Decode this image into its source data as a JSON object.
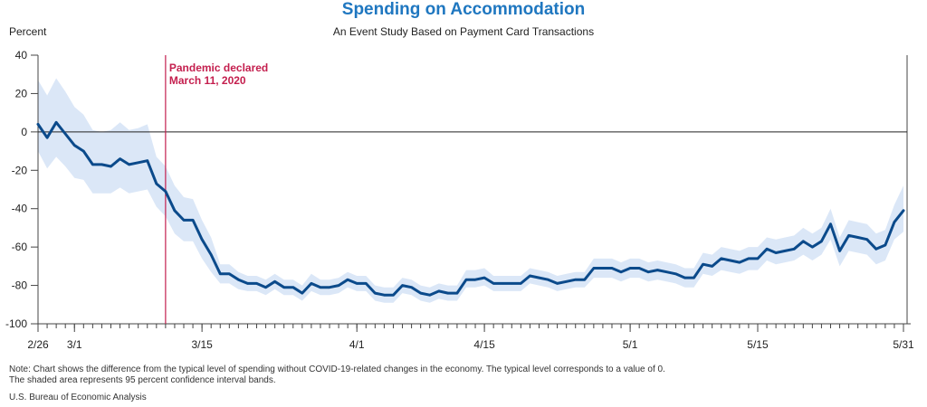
{
  "chart_data": {
    "type": "line",
    "title": "Spending on Accommodation",
    "subtitle": "An Event Study Based on Payment Card Transactions",
    "ylabel": "Percent",
    "ylim": [
      -100,
      40
    ],
    "yticks": [
      40,
      20,
      0,
      -20,
      -40,
      -60,
      -80,
      -100
    ],
    "x_start": "2020-02-26",
    "x_end": "2020-05-31",
    "xtick_labels": [
      {
        "date": "2020-02-26",
        "label": "2/26"
      },
      {
        "date": "2020-03-01",
        "label": "3/1"
      },
      {
        "date": "2020-03-15",
        "label": "3/15"
      },
      {
        "date": "2020-04-01",
        "label": "4/1"
      },
      {
        "date": "2020-04-15",
        "label": "4/15"
      },
      {
        "date": "2020-05-01",
        "label": "5/1"
      },
      {
        "date": "2020-05-15",
        "label": "5/15"
      },
      {
        "date": "2020-05-31",
        "label": "5/31"
      }
    ],
    "colors": {
      "line": "#0b4a8b",
      "band": "#dbe7f7",
      "event": "#c41f4e",
      "title": "#1f77c0",
      "zero": "#222222"
    },
    "series": [
      {
        "name": "",
        "values": [
          {
            "x": "2020-02-26",
            "y": 4,
            "lo": -10,
            "hi": 27
          },
          {
            "x": "2020-02-27",
            "y": -3,
            "lo": -19,
            "hi": 19
          },
          {
            "x": "2020-02-28",
            "y": 5,
            "lo": -13,
            "hi": 28
          },
          {
            "x": "2020-02-29",
            "y": -1,
            "lo": -18,
            "hi": 21
          },
          {
            "x": "2020-03-01",
            "y": -7,
            "lo": -24,
            "hi": 13
          },
          {
            "x": "2020-03-02",
            "y": -10,
            "lo": -25,
            "hi": 9
          },
          {
            "x": "2020-03-03",
            "y": -17,
            "lo": -32,
            "hi": 1
          },
          {
            "x": "2020-03-04",
            "y": -17,
            "lo": -32,
            "hi": 0
          },
          {
            "x": "2020-03-05",
            "y": -18,
            "lo": -32,
            "hi": 1
          },
          {
            "x": "2020-03-06",
            "y": -14,
            "lo": -29,
            "hi": 5
          },
          {
            "x": "2020-03-07",
            "y": -17,
            "lo": -32,
            "hi": 1
          },
          {
            "x": "2020-03-08",
            "y": -16,
            "lo": -31,
            "hi": 2
          },
          {
            "x": "2020-03-09",
            "y": -15,
            "lo": -30,
            "hi": 4
          },
          {
            "x": "2020-03-10",
            "y": -27,
            "lo": -39,
            "hi": -13
          },
          {
            "x": "2020-03-11",
            "y": -31,
            "lo": -44,
            "hi": -18
          },
          {
            "x": "2020-03-12",
            "y": -41,
            "lo": -53,
            "hi": -28
          },
          {
            "x": "2020-03-13",
            "y": -46,
            "lo": -57,
            "hi": -34
          },
          {
            "x": "2020-03-14",
            "y": -46,
            "lo": -57,
            "hi": -35
          },
          {
            "x": "2020-03-15",
            "y": -56,
            "lo": -66,
            "hi": -46
          },
          {
            "x": "2020-03-16",
            "y": -64,
            "lo": -73,
            "hi": -55
          },
          {
            "x": "2020-03-17",
            "y": -74,
            "lo": -79,
            "hi": -69
          },
          {
            "x": "2020-03-18",
            "y": -74,
            "lo": -79,
            "hi": -69
          },
          {
            "x": "2020-03-19",
            "y": -77,
            "lo": -82,
            "hi": -73
          },
          {
            "x": "2020-03-20",
            "y": -79,
            "lo": -83,
            "hi": -75
          },
          {
            "x": "2020-03-21",
            "y": -79,
            "lo": -83,
            "hi": -75
          },
          {
            "x": "2020-03-22",
            "y": -81,
            "lo": -85,
            "hi": -77
          },
          {
            "x": "2020-03-23",
            "y": -78,
            "lo": -82,
            "hi": -74
          },
          {
            "x": "2020-03-24",
            "y": -81,
            "lo": -85,
            "hi": -77
          },
          {
            "x": "2020-03-25",
            "y": -81,
            "lo": -85,
            "hi": -77
          },
          {
            "x": "2020-03-26",
            "y": -84,
            "lo": -88,
            "hi": -80
          },
          {
            "x": "2020-03-27",
            "y": -79,
            "lo": -83,
            "hi": -74
          },
          {
            "x": "2020-03-28",
            "y": -81,
            "lo": -85,
            "hi": -77
          },
          {
            "x": "2020-03-29",
            "y": -81,
            "lo": -85,
            "hi": -77
          },
          {
            "x": "2020-03-30",
            "y": -80,
            "lo": -84,
            "hi": -76
          },
          {
            "x": "2020-03-31",
            "y": -77,
            "lo": -81,
            "hi": -73
          },
          {
            "x": "2020-04-01",
            "y": -79,
            "lo": -83,
            "hi": -75
          },
          {
            "x": "2020-04-02",
            "y": -79,
            "lo": -83,
            "hi": -75
          },
          {
            "x": "2020-04-03",
            "y": -84,
            "lo": -88,
            "hi": -80
          },
          {
            "x": "2020-04-04",
            "y": -85,
            "lo": -89,
            "hi": -81
          },
          {
            "x": "2020-04-05",
            "y": -85,
            "lo": -89,
            "hi": -81
          },
          {
            "x": "2020-04-06",
            "y": -80,
            "lo": -84,
            "hi": -76
          },
          {
            "x": "2020-04-07",
            "y": -81,
            "lo": -85,
            "hi": -77
          },
          {
            "x": "2020-04-08",
            "y": -84,
            "lo": -88,
            "hi": -80
          },
          {
            "x": "2020-04-09",
            "y": -85,
            "lo": -89,
            "hi": -81
          },
          {
            "x": "2020-04-10",
            "y": -83,
            "lo": -87,
            "hi": -79
          },
          {
            "x": "2020-04-11",
            "y": -84,
            "lo": -88,
            "hi": -80
          },
          {
            "x": "2020-04-12",
            "y": -84,
            "lo": -88,
            "hi": -80
          },
          {
            "x": "2020-04-13",
            "y": -77,
            "lo": -81,
            "hi": -72
          },
          {
            "x": "2020-04-14",
            "y": -77,
            "lo": -81,
            "hi": -72
          },
          {
            "x": "2020-04-15",
            "y": -76,
            "lo": -80,
            "hi": -71
          },
          {
            "x": "2020-04-16",
            "y": -79,
            "lo": -83,
            "hi": -75
          },
          {
            "x": "2020-04-17",
            "y": -79,
            "lo": -83,
            "hi": -75
          },
          {
            "x": "2020-04-18",
            "y": -79,
            "lo": -83,
            "hi": -75
          },
          {
            "x": "2020-04-19",
            "y": -79,
            "lo": -83,
            "hi": -75
          },
          {
            "x": "2020-04-20",
            "y": -75,
            "lo": -79,
            "hi": -71
          },
          {
            "x": "2020-04-21",
            "y": -76,
            "lo": -80,
            "hi": -72
          },
          {
            "x": "2020-04-22",
            "y": -77,
            "lo": -81,
            "hi": -73
          },
          {
            "x": "2020-04-23",
            "y": -79,
            "lo": -83,
            "hi": -75
          },
          {
            "x": "2020-04-24",
            "y": -78,
            "lo": -82,
            "hi": -74
          },
          {
            "x": "2020-04-25",
            "y": -77,
            "lo": -81,
            "hi": -73
          },
          {
            "x": "2020-04-26",
            "y": -77,
            "lo": -81,
            "hi": -73
          },
          {
            "x": "2020-04-27",
            "y": -71,
            "lo": -76,
            "hi": -66
          },
          {
            "x": "2020-04-28",
            "y": -71,
            "lo": -76,
            "hi": -66
          },
          {
            "x": "2020-04-29",
            "y": -71,
            "lo": -76,
            "hi": -66
          },
          {
            "x": "2020-04-30",
            "y": -73,
            "lo": -78,
            "hi": -68
          },
          {
            "x": "2020-05-01",
            "y": -71,
            "lo": -76,
            "hi": -66
          },
          {
            "x": "2020-05-02",
            "y": -71,
            "lo": -76,
            "hi": -66
          },
          {
            "x": "2020-05-03",
            "y": -73,
            "lo": -78,
            "hi": -68
          },
          {
            "x": "2020-05-04",
            "y": -72,
            "lo": -77,
            "hi": -67
          },
          {
            "x": "2020-05-05",
            "y": -73,
            "lo": -78,
            "hi": -68
          },
          {
            "x": "2020-05-06",
            "y": -74,
            "lo": -79,
            "hi": -69
          },
          {
            "x": "2020-05-07",
            "y": -76,
            "lo": -81,
            "hi": -71
          },
          {
            "x": "2020-05-08",
            "y": -76,
            "lo": -81,
            "hi": -71
          },
          {
            "x": "2020-05-09",
            "y": -69,
            "lo": -74,
            "hi": -63
          },
          {
            "x": "2020-05-10",
            "y": -70,
            "lo": -75,
            "hi": -64
          },
          {
            "x": "2020-05-11",
            "y": -66,
            "lo": -72,
            "hi": -60
          },
          {
            "x": "2020-05-12",
            "y": -67,
            "lo": -73,
            "hi": -61
          },
          {
            "x": "2020-05-13",
            "y": -68,
            "lo": -74,
            "hi": -62
          },
          {
            "x": "2020-05-14",
            "y": -66,
            "lo": -72,
            "hi": -60
          },
          {
            "x": "2020-05-15",
            "y": -66,
            "lo": -72,
            "hi": -60
          },
          {
            "x": "2020-05-16",
            "y": -61,
            "lo": -67,
            "hi": -55
          },
          {
            "x": "2020-05-17",
            "y": -63,
            "lo": -69,
            "hi": -56
          },
          {
            "x": "2020-05-18",
            "y": -62,
            "lo": -68,
            "hi": -55
          },
          {
            "x": "2020-05-19",
            "y": -61,
            "lo": -67,
            "hi": -54
          },
          {
            "x": "2020-05-20",
            "y": -57,
            "lo": -64,
            "hi": -50
          },
          {
            "x": "2020-05-21",
            "y": -60,
            "lo": -67,
            "hi": -53
          },
          {
            "x": "2020-05-22",
            "y": -57,
            "lo": -64,
            "hi": -50
          },
          {
            "x": "2020-05-23",
            "y": -48,
            "lo": -56,
            "hi": -40
          },
          {
            "x": "2020-05-24",
            "y": -62,
            "lo": -70,
            "hi": -55
          },
          {
            "x": "2020-05-25",
            "y": -54,
            "lo": -62,
            "hi": -46
          },
          {
            "x": "2020-05-26",
            "y": -55,
            "lo": -63,
            "hi": -47
          },
          {
            "x": "2020-05-27",
            "y": -56,
            "lo": -64,
            "hi": -48
          },
          {
            "x": "2020-05-28",
            "y": -61,
            "lo": -69,
            "hi": -53
          },
          {
            "x": "2020-05-29",
            "y": -59,
            "lo": -67,
            "hi": -51
          },
          {
            "x": "2020-05-30",
            "y": -47,
            "lo": -56,
            "hi": -38
          },
          {
            "x": "2020-05-31",
            "y": -41,
            "lo": -52,
            "hi": -28
          }
        ]
      }
    ],
    "annotation": {
      "date": "2020-03-11",
      "line1": "Pandemic declared",
      "line2": "March 11, 2020"
    }
  },
  "notes": {
    "line1": "Note: Chart shows the difference from the typical level of spending without COVID-19-related changes in the economy. The typical level corresponds to a value of 0.",
    "line2": "The shaded area represents 95 percent confidence interval bands."
  },
  "source": "U.S. Bureau of Economic Analysis"
}
